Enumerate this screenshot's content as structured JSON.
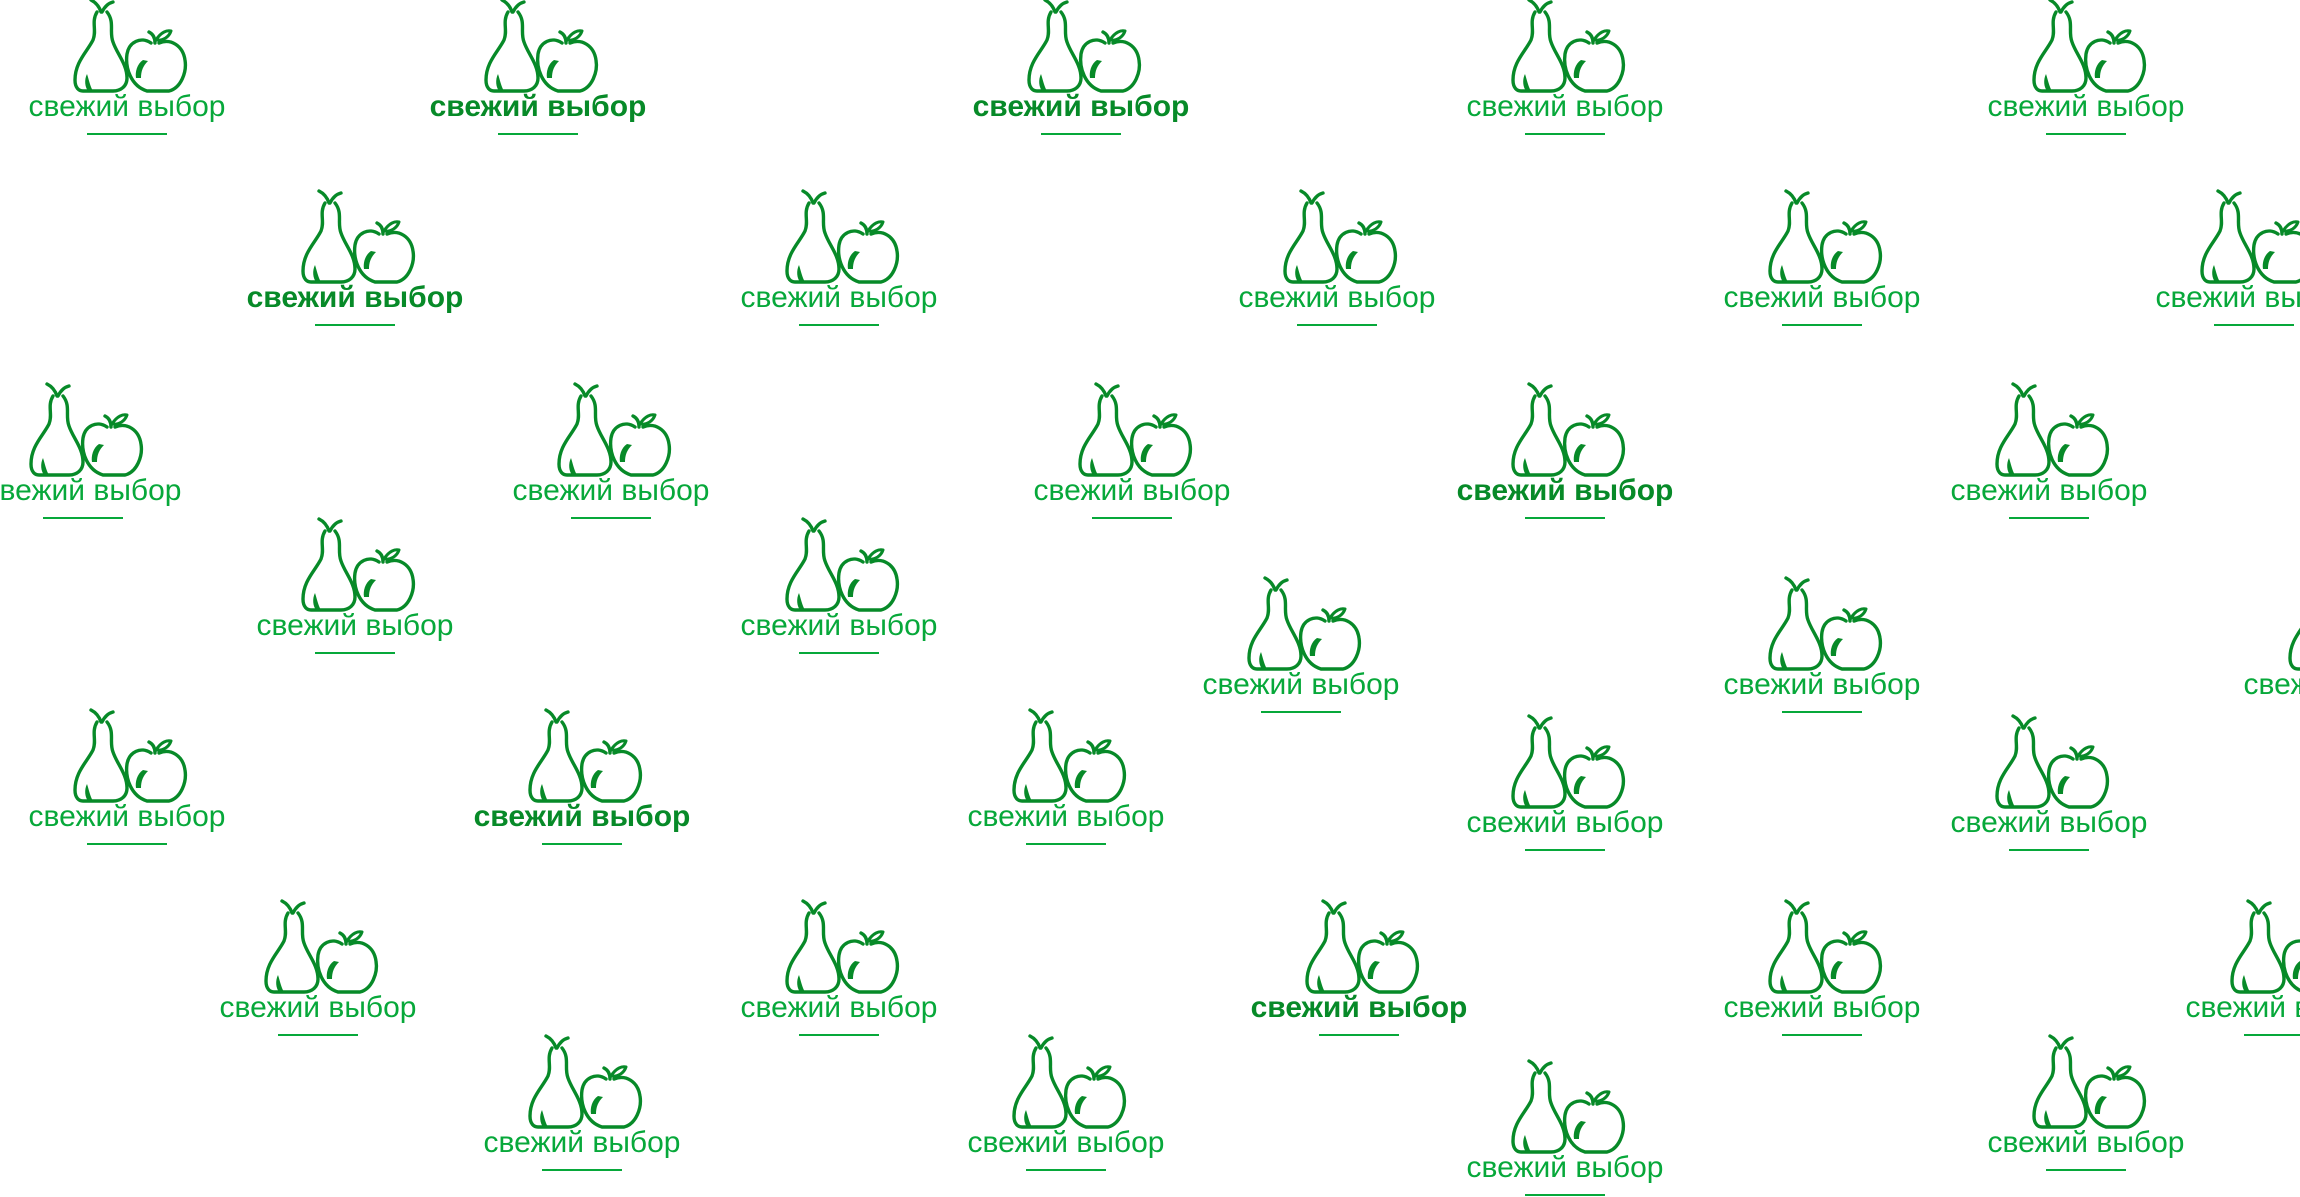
{
  "pattern": {
    "brand_text": "свежий выбор",
    "brand_color": "#07a83a",
    "dark_color": "#078a28",
    "background": "#ffffff",
    "icon_name": "pear-apple-logo-icon"
  }
}
